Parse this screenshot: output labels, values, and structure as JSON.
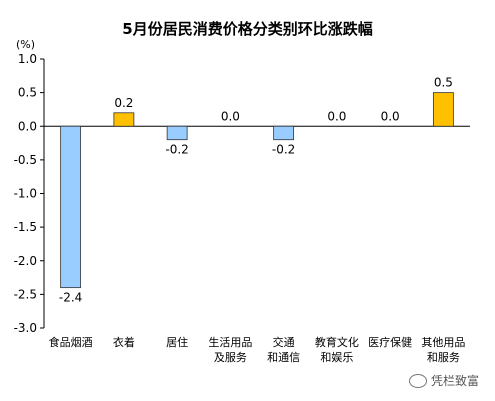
{
  "chart_data": {
    "type": "bar",
    "title": "5月份居民消费价格分类别环比涨跌幅",
    "unit": "(%)",
    "categories": [
      "食品烟酒",
      "衣着",
      "居住",
      "生活用品\n及服务",
      "交通\n和通信",
      "教育文化\n和娱乐",
      "医疗保健",
      "其他用品\n和服务"
    ],
    "values": [
      -2.4,
      0.2,
      -0.2,
      0.0,
      -0.2,
      0.0,
      0.0,
      0.5
    ],
    "value_labels": [
      "-2.4",
      "0.2",
      "-0.2",
      "0.0",
      "-0.2",
      "0.0",
      "0.0",
      "0.5"
    ],
    "ylim": [
      -3.0,
      1.0
    ],
    "yticks": [
      1.0,
      0.5,
      0.0,
      -0.5,
      -1.0,
      -1.5,
      -2.0,
      -2.5,
      -3.0
    ],
    "ytick_labels": [
      "1.0",
      "0.5",
      "0.0",
      "-0.5",
      "-1.0",
      "-1.5",
      "-2.0",
      "-2.5",
      "-3.0"
    ],
    "grid": false,
    "colors": {
      "negative_fill": "#99ccff",
      "positive_fill": "#ffc000",
      "bar_stroke": "#333333",
      "axis": "#000000"
    }
  },
  "watermark": {
    "text": "凭栏致富"
  }
}
